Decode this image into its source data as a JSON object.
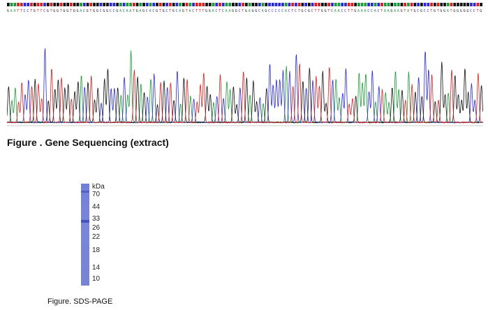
{
  "sequencing": {
    "sequence": "GAATTCCTGTTCGTGGTGGTGGACGTGGCGGCCGACAATGAGCACGTGCTGCAGTACTTTGGACTCAAGGCTGAGGCAGCCCCCACTCTGCGCTTGGTCAACCTTGAAACCACTAAGAAGTATGCGCCTGTGGATGGGGGCCTG",
    "colors": {
      "A": "#1a9a3a",
      "C": "#2a2ad0",
      "G": "#111111",
      "T": "#d42020"
    },
    "caption": "Figure . Gene Sequencing (extract)"
  },
  "gel": {
    "unit_label": "kDa",
    "markers": [
      "70",
      "44",
      "33",
      "26",
      "22",
      "18",
      "14",
      "10"
    ],
    "caption": "Figure. SDS-PAGE"
  }
}
